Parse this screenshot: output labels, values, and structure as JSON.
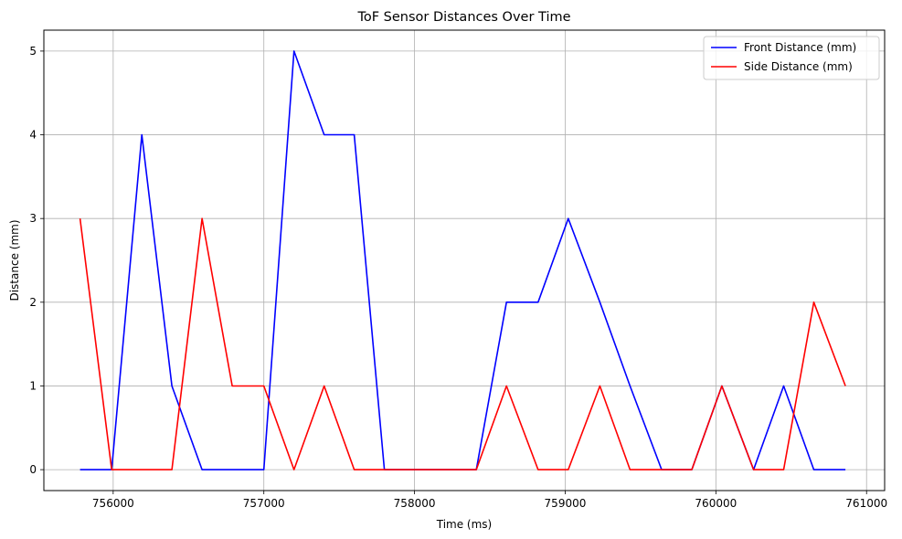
{
  "chart_data": {
    "type": "line",
    "title": "ToF Sensor Distances Over Time",
    "xlabel": "Time (ms)",
    "ylabel": "Distance (mm)",
    "xlim": [
      755540,
      761120
    ],
    "ylim": [
      -0.25,
      5.25
    ],
    "xticks": [
      756000,
      757000,
      758000,
      759000,
      760000,
      761000
    ],
    "yticks": [
      0,
      1,
      2,
      3,
      4,
      5
    ],
    "grid": true,
    "legend_position": "top-right",
    "series": [
      {
        "name": "Front Distance (mm)",
        "color": "#0000ff",
        "x": [
          755780,
          755990,
          756190,
          756390,
          756590,
          756790,
          757000,
          757200,
          757400,
          757600,
          757800,
          758010,
          758210,
          758410,
          758610,
          758820,
          759020,
          759230,
          759430,
          759640,
          759840,
          760040,
          760250,
          760450,
          760650,
          760860
        ],
        "y": [
          0,
          0,
          4,
          1,
          0,
          0,
          0,
          5,
          4,
          4,
          0,
          0,
          0,
          0,
          2,
          2,
          3,
          2,
          1,
          0,
          0,
          1,
          0,
          1,
          0,
          0
        ]
      },
      {
        "name": "Side Distance (mm)",
        "color": "#ff0000",
        "x": [
          755780,
          755990,
          756190,
          756390,
          756590,
          756790,
          757000,
          757200,
          757400,
          757600,
          757800,
          758010,
          758210,
          758410,
          758610,
          758820,
          759020,
          759230,
          759430,
          759640,
          759840,
          760040,
          760250,
          760450,
          760650,
          760860
        ],
        "y": [
          3,
          0,
          0,
          0,
          3,
          1,
          1,
          0,
          1,
          0,
          0,
          0,
          0,
          0,
          1,
          0,
          0,
          1,
          0,
          0,
          0,
          1,
          0,
          0,
          2,
          1
        ]
      }
    ]
  }
}
